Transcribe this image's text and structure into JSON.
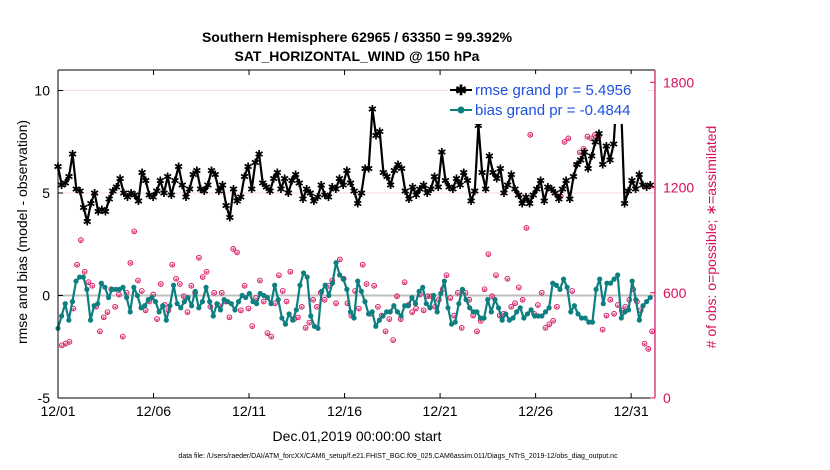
{
  "chart_data": {
    "type": "line",
    "title_line1": "Southern Hemisphere 62965 / 63350 = 99.392%",
    "title_line2": "SAT_HORIZONTAL_WIND @ 150 hPa",
    "xlabel": "Dec.01,2019 00:00:00 start",
    "ylabel": "rmse and bias (model - observation)",
    "ylabel_right": "# of obs: o=possible; ∗=assimilated",
    "footer": "data file: /Users/raeder/DAI/ATM_forcXX/CAM6_setup/f.e21.FHIST_BGC.f09_025.CAM6assim.011/Diags_NTrS_2019-12/obs_diag_output.nc",
    "x_range": [
      0,
      31.25
    ],
    "ylim": [
      -5,
      11
    ],
    "ylim_right": [
      0,
      1870
    ],
    "x_ticks": [
      0,
      5,
      10,
      15,
      20,
      25,
      30
    ],
    "x_tick_labels": [
      "12/01",
      "12/06",
      "12/11",
      "12/16",
      "12/21",
      "12/26",
      "12/31"
    ],
    "y_ticks": [
      -5,
      0,
      5,
      10
    ],
    "y_tick_labels": [
      "-5",
      "0",
      "5",
      "10"
    ],
    "y_right_ticks": [
      0,
      600,
      1200,
      1800
    ],
    "y_right_tick_labels": [
      "0",
      "600",
      "1200",
      "1800"
    ],
    "series": [
      {
        "name": "rmse grand pr = 5.4956",
        "color": "#000000",
        "marker": "asterisk",
        "values": [
          6.3,
          5.4,
          5.5,
          5.8,
          6.9,
          5.2,
          5.1,
          4.3,
          3.6,
          4.5,
          5.0,
          4.1,
          4.2,
          4.1,
          4.7,
          5.1,
          5.3,
          5.7,
          5.0,
          4.8,
          5.0,
          4.9,
          4.6,
          6.0,
          5.6,
          4.9,
          4.8,
          5.1,
          5.6,
          5.0,
          5.8,
          4.9,
          5.6,
          6.3,
          5.4,
          4.8,
          5.2,
          5.9,
          6.1,
          5.2,
          5.1,
          5.4,
          6.1,
          5.9,
          5.1,
          5.4,
          4.4,
          3.8,
          5.2,
          4.6,
          4.8,
          5.8,
          6.3,
          5.2,
          6.5,
          6.9,
          5.5,
          5.3,
          5.1,
          5.7,
          6.0,
          5.2,
          5.7,
          5.0,
          5.6,
          5.9,
          5.5,
          4.7,
          5.2,
          5.0,
          4.6,
          4.8,
          5.4,
          4.9,
          4.8,
          5.3,
          5.2,
          5.7,
          5.4,
          6.1,
          5.5,
          5.1,
          4.5,
          5.0,
          6.2,
          6.2,
          9.1,
          7.8,
          8.0,
          6.0,
          5.8,
          5.4,
          6.1,
          6.4,
          6.2,
          5.1,
          4.7,
          5.3,
          4.9,
          5.2,
          5.4,
          5.0,
          5.2,
          5.8,
          5.3,
          7.0,
          5.6,
          5.3,
          5.2,
          5.7,
          5.4,
          6.0,
          5.6,
          4.6,
          5.1,
          8.3,
          6.0,
          5.2,
          6.8,
          6.0,
          5.7,
          6.2,
          5.0,
          5.4,
          5.9,
          5.2,
          4.9,
          4.5,
          4.8,
          4.5,
          4.9,
          5.2,
          5.6,
          4.6,
          5.3,
          5.2,
          5.0,
          4.7,
          5.2,
          5.6,
          4.7,
          5.8,
          6.4,
          6.6,
          7.0,
          6.2,
          6.8,
          7.5,
          7.9,
          6.4,
          7.3,
          6.6,
          7.4,
          10.3,
          9.4,
          4.5,
          5.1,
          5.6,
          5.2,
          5.9,
          5.4,
          5.3,
          5.4
        ]
      },
      {
        "name": "bias grand pr = -0.4844",
        "color": "#0d7f80",
        "marker": "dot",
        "values": [
          -1.6,
          -1.0,
          -0.4,
          -1.2,
          -0.3,
          0.7,
          0.9,
          0.9,
          0.3,
          -1.2,
          -0.5,
          -0.4,
          0.6,
          0.4,
          -0.1,
          0.3,
          0.3,
          0.3,
          0.4,
          -0.1,
          -0.8,
          0.4,
          0.0,
          -0.6,
          -0.5,
          -0.2,
          -0.1,
          -0.3,
          -0.8,
          -0.5,
          -1.2,
          -0.5,
          0.5,
          -0.4,
          -0.6,
          -0.3,
          -0.1,
          -0.5,
          0.2,
          -0.6,
          -0.3,
          0.4,
          -0.3,
          -1.0,
          -0.4,
          -0.7,
          -0.2,
          -0.3,
          -0.4,
          -0.7,
          -0.3,
          0.0,
          -0.1,
          0.1,
          -0.3,
          -0.4,
          0.1,
          0.0,
          -0.1,
          -0.4,
          0.5,
          -0.2,
          -1.1,
          -1.4,
          -0.9,
          -1.2,
          -0.7,
          0.5,
          1.1,
          0.9,
          -1.0,
          -1.5,
          -1.6,
          0.2,
          0.5,
          0.0,
          0.6,
          1.6,
          1.0,
          0.8,
          0.3,
          -0.8,
          -1.1,
          0.7,
          0.2,
          -0.3,
          -0.9,
          -0.8,
          -1.5,
          -1.2,
          -1.0,
          -0.8,
          -0.8,
          -0.5,
          -0.8,
          -1.0,
          -0.5,
          -0.5,
          -0.1,
          -0.4,
          0.2,
          0.4,
          -0.4,
          -0.6,
          0.0,
          -0.8,
          0.1,
          0.7,
          -0.6,
          -1.4,
          -1.3,
          -0.4,
          0.3,
          -0.2,
          -0.6,
          -0.8,
          -0.8,
          -1.1,
          -1.1,
          -0.2,
          -0.8,
          -0.2,
          -0.6,
          -1.2,
          -0.9,
          -1.2,
          -1.1,
          -0.8,
          -0.6,
          -1.1,
          -0.9,
          -0.7,
          -1.0,
          -1.0,
          -1.0,
          -0.8,
          -0.6,
          0.6,
          0.5,
          0.3,
          0.8,
          0.4,
          -0.8,
          -0.5,
          -0.9,
          -1.1,
          -1.1,
          -1.3,
          -1.3,
          0.3,
          0.8,
          -0.4,
          0.6,
          0.6,
          0.8,
          1.0,
          -1.1,
          -0.8,
          -0.7,
          0.7,
          -0.2,
          -1.2,
          -0.5,
          -0.3,
          -0.1
        ]
      }
    ],
    "obs_possible": [
      300,
      310,
      320,
      510,
      760,
      900,
      720,
      660,
      640,
      520,
      380,
      460,
      490,
      620,
      520,
      590,
      350,
      600,
      770,
      950,
      670,
      610,
      500,
      550,
      590,
      450,
      650,
      530,
      500,
      760,
      680,
      650,
      580,
      490,
      640,
      600,
      800,
      690,
      720,
      520,
      600,
      530,
      600,
      550,
      460,
      850,
      830,
      500,
      640,
      510,
      410,
      570,
      670,
      550,
      370,
      350,
      540,
      700,
      610,
      550,
      720,
      450,
      460,
      520,
      400,
      430,
      560,
      520,
      600,
      560,
      640,
      670,
      540,
      790,
      680,
      540,
      470,
      610,
      510,
      760,
      650,
      480,
      640,
      520,
      470,
      380,
      450,
      330,
      580,
      450,
      660,
      530,
      490,
      510,
      590,
      500,
      580,
      580,
      520,
      560,
      620,
      700,
      570,
      470,
      600,
      400,
      600,
      560,
      470,
      380,
      440,
      620,
      820,
      580,
      700,
      470,
      480,
      680,
      520,
      540,
      630,
      560,
      970,
      1500,
      480,
      530,
      600,
      400,
      420,
      440,
      520,
      1150,
      1460,
      1480,
      610,
      1330,
      1400,
      1420,
      1490,
      1480,
      1500,
      1490,
      390,
      470,
      560,
      480,
      530,
      500,
      520,
      560,
      620,
      550,
      500,
      310,
      280,
      380
    ],
    "obs_assimilated": [
      290,
      300,
      310,
      500,
      750,
      890,
      710,
      650,
      630,
      510,
      370,
      450,
      480,
      610,
      510,
      580,
      340,
      590,
      760,
      940,
      660,
      600,
      490,
      540,
      580,
      440,
      640,
      520,
      490,
      750,
      670,
      640,
      570,
      480,
      630,
      590,
      790,
      680,
      710,
      510,
      590,
      520,
      590,
      540,
      450,
      840,
      820,
      490,
      630,
      500,
      400,
      560,
      660,
      540,
      360,
      340,
      530,
      690,
      600,
      540,
      710,
      440,
      450,
      510,
      390,
      420,
      550,
      510,
      590,
      550,
      630,
      660,
      530,
      780,
      670,
      530,
      460,
      600,
      500,
      750,
      640,
      470,
      630,
      510,
      460,
      370,
      440,
      320,
      570,
      440,
      650,
      520,
      480,
      500,
      580,
      490,
      570,
      570,
      510,
      550,
      610,
      690,
      560,
      460,
      590,
      390,
      590,
      550,
      460,
      370,
      430,
      610,
      810,
      570,
      690,
      460,
      470,
      670,
      510,
      530,
      620,
      550,
      960,
      1490,
      470,
      520,
      590,
      390,
      410,
      430,
      510,
      1140,
      1450,
      1470,
      600,
      1320,
      1390,
      1410,
      1480,
      1470,
      1490,
      1480,
      380,
      460,
      550,
      470,
      520,
      490,
      510,
      550,
      610,
      540,
      490,
      300,
      270,
      370
    ]
  }
}
